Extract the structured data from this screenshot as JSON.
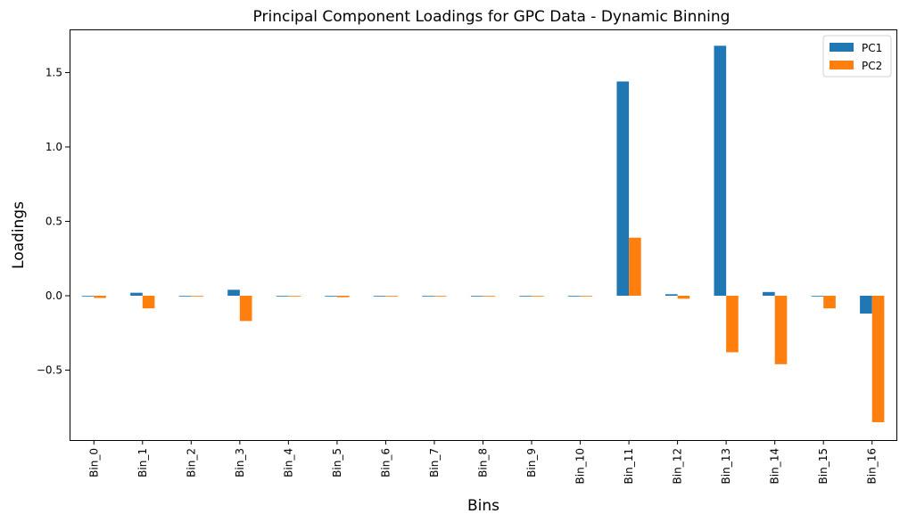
{
  "chart_data": {
    "type": "bar",
    "title": "Principal Component Loadings for GPC Data - Dynamic Binning",
    "xlabel": "Bins",
    "ylabel": "Loadings",
    "categories": [
      "Bin_0",
      "Bin_1",
      "Bin_2",
      "Bin_3",
      "Bin_4",
      "Bin_5",
      "Bin_6",
      "Bin_7",
      "Bin_8",
      "Bin_9",
      "Bin_10",
      "Bin_11",
      "Bin_12",
      "Bin_13",
      "Bin_14",
      "Bin_15",
      "Bin_16"
    ],
    "series": [
      {
        "name": "PC1",
        "color": "#1f77b4",
        "values": [
          0.0,
          0.02,
          0.0,
          0.04,
          0.0,
          0.0,
          0.0,
          0.0,
          0.0,
          0.0,
          0.0,
          1.44,
          0.01,
          1.68,
          0.025,
          0.0,
          -0.12
        ]
      },
      {
        "name": "PC2",
        "color": "#ff7f0e",
        "values": [
          -0.015,
          -0.085,
          -0.005,
          -0.17,
          -0.005,
          -0.01,
          -0.005,
          -0.005,
          -0.005,
          -0.005,
          -0.005,
          0.39,
          -0.02,
          -0.38,
          -0.46,
          -0.085,
          -0.85
        ]
      }
    ],
    "ylim": [
      -0.97,
      1.79
    ],
    "yticks": [
      -0.5,
      0.0,
      0.5,
      1.0,
      1.5
    ],
    "ytick_labels": [
      "−0.5",
      "0.0",
      "0.5",
      "1.0",
      "1.5"
    ],
    "grid": false,
    "legend_position": "top-right"
  }
}
